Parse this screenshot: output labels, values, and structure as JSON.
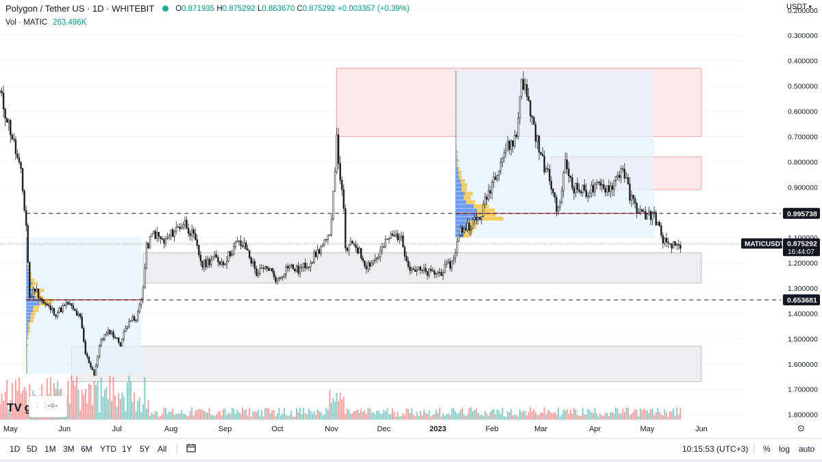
{
  "header": {
    "symbol": "Polygon / Tether US · 1D · WHITEBIT",
    "o_label": "O",
    "o": "0.871935",
    "h_label": "H",
    "h": "0.875292",
    "l_label": "L",
    "l": "0.863670",
    "c_label": "C",
    "c": "0.875292",
    "change": "+0.003357 (+0.39%)",
    "vol_label": "Vol · MATIC",
    "vol": "263.496K"
  },
  "price_scale": {
    "unit": "USDT",
    "ticks": [
      "1.800000",
      "1.700000",
      "1.600000",
      "1.500000",
      "1.400000",
      "1.300000",
      "1.200000",
      "1.100000",
      "0.900000",
      "0.800000",
      "0.700000",
      "0.600000",
      "0.500000",
      "0.400000",
      "0.300000",
      "0.200000"
    ],
    "level_labels": [
      {
        "text": "0.995738",
        "value": 0.995738
      },
      {
        "text": "0.653681",
        "value": 0.653681
      }
    ],
    "last_price": {
      "symbol": "MATICUSDT",
      "price": "0.875292",
      "countdown": "16:44:07",
      "value": 0.875292
    }
  },
  "time_axis": [
    "May",
    "Jun",
    "Jul",
    "Aug",
    "Sep",
    "Oct",
    "Nov",
    "Dec",
    "2023",
    "Feb",
    "Mar",
    "Apr",
    "May",
    "Jun"
  ],
  "bottom_toolbar": {
    "timeframes": [
      "1D",
      "5D",
      "1M",
      "3M",
      "6M",
      "YTD",
      "1Y",
      "5Y",
      "All"
    ],
    "clock": "10:15:53 (UTC+3)",
    "percent": "%",
    "log": "log",
    "auto": "auto"
  },
  "branding": {
    "logo_text": "gView",
    "logo_mark": "TV"
  },
  "colors": {
    "up": "#26a69a",
    "down": "#ef5350",
    "candle": "#1e1e1e",
    "supply_zone": "#fde7e7",
    "demand_zone": "#ededf0",
    "profile_area": "#e3f2fd",
    "poc_line": "#d32f2f"
  },
  "chart_data": {
    "type": "candlestick",
    "title": "Polygon / Tether US · 1D · WHITEBIT",
    "ylim": [
      0.18,
      1.84
    ],
    "x_range": [
      "2022-04-25",
      "2023-06-25"
    ],
    "yticks": [
      0.2,
      0.3,
      0.4,
      0.5,
      0.6,
      0.7,
      0.8,
      0.9,
      1.1,
      1.2,
      1.3,
      1.4,
      1.5,
      1.6,
      1.7,
      1.8
    ],
    "close_path": [
      [
        "2022-04-25",
        1.47
      ],
      [
        "2022-05-02",
        1.3
      ],
      [
        "2022-05-07",
        1.15
      ],
      [
        "2022-05-10",
        0.95
      ],
      [
        "2022-05-12",
        0.66
      ],
      [
        "2022-05-15",
        0.7
      ],
      [
        "2022-05-20",
        0.64
      ],
      [
        "2022-05-27",
        0.6
      ],
      [
        "2022-06-03",
        0.64
      ],
      [
        "2022-06-10",
        0.58
      ],
      [
        "2022-06-13",
        0.44
      ],
      [
        "2022-06-18",
        0.36
      ],
      [
        "2022-06-22",
        0.5
      ],
      [
        "2022-06-27",
        0.53
      ],
      [
        "2022-07-03",
        0.48
      ],
      [
        "2022-07-08",
        0.58
      ],
      [
        "2022-07-12",
        0.57
      ],
      [
        "2022-07-16",
        0.7
      ],
      [
        "2022-07-18",
        0.86
      ],
      [
        "2022-07-22",
        0.92
      ],
      [
        "2022-07-28",
        0.88
      ],
      [
        "2022-08-03",
        0.93
      ],
      [
        "2022-08-09",
        0.96
      ],
      [
        "2022-08-14",
        0.9
      ],
      [
        "2022-08-19",
        0.79
      ],
      [
        "2022-08-25",
        0.82
      ],
      [
        "2022-08-31",
        0.8
      ],
      [
        "2022-09-08",
        0.88
      ],
      [
        "2022-09-13",
        0.86
      ],
      [
        "2022-09-19",
        0.76
      ],
      [
        "2022-09-26",
        0.78
      ],
      [
        "2022-10-01",
        0.73
      ],
      [
        "2022-10-07",
        0.79
      ],
      [
        "2022-10-13",
        0.77
      ],
      [
        "2022-10-19",
        0.8
      ],
      [
        "2022-10-26",
        0.86
      ],
      [
        "2022-10-31",
        0.9
      ],
      [
        "2022-11-04",
        1.28
      ],
      [
        "2022-11-08",
        1.0
      ],
      [
        "2022-11-09",
        0.85
      ],
      [
        "2022-11-14",
        0.88
      ],
      [
        "2022-11-21",
        0.79
      ],
      [
        "2022-11-27",
        0.82
      ],
      [
        "2022-12-04",
        0.9
      ],
      [
        "2022-12-10",
        0.91
      ],
      [
        "2022-12-16",
        0.78
      ],
      [
        "2022-12-26",
        0.76
      ],
      [
        "2023-01-02",
        0.76
      ],
      [
        "2023-01-09",
        0.8
      ],
      [
        "2023-01-14",
        0.93
      ],
      [
        "2023-01-19",
        0.95
      ],
      [
        "2023-01-25",
        0.98
      ],
      [
        "2023-02-01",
        1.12
      ],
      [
        "2023-02-08",
        1.24
      ],
      [
        "2023-02-15",
        1.3
      ],
      [
        "2023-02-18",
        1.54
      ],
      [
        "2023-02-23",
        1.4
      ],
      [
        "2023-03-01",
        1.22
      ],
      [
        "2023-03-06",
        1.13
      ],
      [
        "2023-03-11",
        1.0
      ],
      [
        "2023-03-15",
        1.19
      ],
      [
        "2023-03-20",
        1.1
      ],
      [
        "2023-03-27",
        1.08
      ],
      [
        "2023-04-03",
        1.1
      ],
      [
        "2023-04-10",
        1.1
      ],
      [
        "2023-04-17",
        1.18
      ],
      [
        "2023-04-21",
        1.06
      ],
      [
        "2023-04-28",
        0.99
      ],
      [
        "2023-05-05",
        0.99
      ],
      [
        "2023-05-09",
        0.91
      ],
      [
        "2023-05-13",
        0.86
      ],
      [
        "2023-05-17",
        0.87
      ],
      [
        "2023-05-20",
        0.875
      ]
    ],
    "zones": [
      {
        "kind": "supply",
        "from": "2022-11-04",
        "to": "2023-06-01",
        "low": 1.3,
        "high": 1.57
      },
      {
        "kind": "supply",
        "from": "2023-03-07",
        "to": "2023-06-01",
        "low": 1.09,
        "high": 1.22
      },
      {
        "kind": "demand",
        "from": "2022-07-16",
        "to": "2023-06-01",
        "low": 0.72,
        "high": 0.84
      },
      {
        "kind": "demand",
        "from": "2022-06-05",
        "to": "2023-06-01",
        "low": 0.33,
        "high": 0.47
      }
    ],
    "levels": [
      {
        "value": 0.995738,
        "from": "2022-05-10",
        "style": "dashed"
      },
      {
        "value": 0.653681,
        "from": "2022-05-10",
        "style": "dashed"
      }
    ],
    "volume_profiles": [
      {
        "from": "2022-05-10",
        "to": "2022-07-15",
        "low": 0.36,
        "high": 0.9,
        "poc": 0.653681
      },
      {
        "from": "2023-01-11",
        "to": "2023-05-05",
        "low": 0.9,
        "high": 1.56,
        "poc": 0.995738
      }
    ]
  }
}
